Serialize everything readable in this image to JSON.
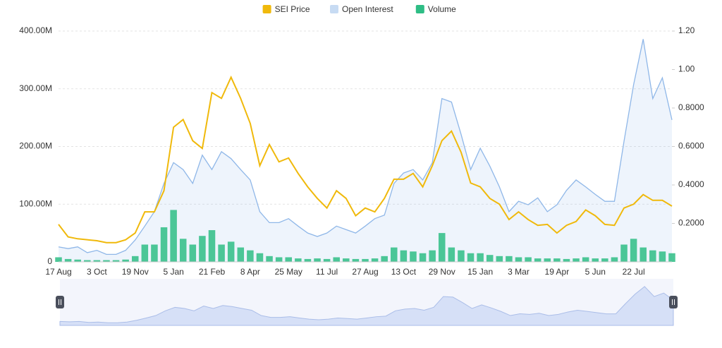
{
  "chart_data": {
    "type": "line",
    "categories": [
      "17 Aug",
      null,
      null,
      null,
      "3 Oct",
      null,
      null,
      null,
      "19 Nov",
      null,
      null,
      null,
      "5 Jan",
      null,
      null,
      null,
      "21 Feb",
      null,
      null,
      null,
      "8 Apr",
      null,
      null,
      null,
      "25 May",
      null,
      null,
      null,
      "11 Jul",
      null,
      null,
      null,
      "27 Aug",
      null,
      null,
      null,
      "13 Oct",
      null,
      null,
      null,
      "29 Nov",
      null,
      null,
      null,
      "15 Jan",
      null,
      null,
      null,
      "3 Mar",
      null,
      null,
      null,
      "19 Apr",
      null,
      null,
      null,
      "5 Jun",
      null,
      null,
      null,
      "22 Jul",
      null,
      null,
      null,
      null
    ],
    "series": [
      {
        "name": "SEI Price",
        "type": "line",
        "axis": "y2",
        "color": "#f0b90b",
        "values": [
          0.195,
          0.13,
          0.12,
          0.115,
          0.11,
          0.1,
          0.1,
          0.115,
          0.15,
          0.26,
          0.26,
          0.37,
          0.7,
          0.74,
          0.63,
          0.59,
          0.88,
          0.85,
          0.96,
          0.85,
          0.72,
          0.5,
          0.61,
          0.52,
          0.54,
          0.46,
          0.39,
          0.33,
          0.28,
          0.37,
          0.33,
          0.24,
          0.28,
          0.26,
          0.33,
          0.43,
          0.43,
          0.46,
          0.39,
          0.5,
          0.63,
          0.68,
          0.57,
          0.41,
          0.39,
          0.33,
          0.3,
          0.22,
          0.26,
          0.22,
          0.19,
          0.195,
          0.15,
          0.19,
          0.21,
          0.27,
          0.24,
          0.195,
          0.19,
          0.28,
          0.3,
          0.35,
          0.32,
          0.32,
          0.29
        ]
      },
      {
        "name": "Open Interest",
        "type": "area",
        "axis": "y",
        "color": "#8fb7e8",
        "values": [
          26000000,
          23000000,
          26000000,
          16000000,
          20000000,
          13000000,
          13000000,
          20000000,
          38000000,
          62000000,
          87000000,
          136000000,
          172000000,
          160000000,
          136000000,
          185000000,
          160000000,
          191000000,
          179000000,
          160000000,
          142000000,
          87000000,
          68000000,
          68000000,
          75000000,
          62000000,
          50000000,
          44000000,
          50000000,
          62000000,
          56000000,
          50000000,
          62000000,
          75000000,
          81000000,
          136000000,
          154000000,
          160000000,
          142000000,
          172000000,
          283000000,
          277000000,
          221000000,
          160000000,
          197000000,
          166000000,
          130000000,
          87000000,
          105000000,
          99000000,
          111000000,
          87000000,
          99000000,
          124000000,
          142000000,
          130000000,
          117000000,
          105000000,
          105000000,
          209000000,
          307000000,
          386000000,
          283000000,
          319000000,
          246000000
        ]
      },
      {
        "name": "Volume",
        "type": "bar",
        "axis": "y",
        "color": "#2ebd85",
        "values": [
          8000000,
          5000000,
          4000000,
          3000000,
          3000000,
          3000000,
          3000000,
          4000000,
          10000000,
          30000000,
          30000000,
          60000000,
          90000000,
          40000000,
          30000000,
          45000000,
          55000000,
          30000000,
          35000000,
          25000000,
          20000000,
          15000000,
          10000000,
          8000000,
          8000000,
          6000000,
          5000000,
          6000000,
          5000000,
          8000000,
          6000000,
          5000000,
          5000000,
          6000000,
          10000000,
          25000000,
          20000000,
          18000000,
          15000000,
          20000000,
          50000000,
          25000000,
          20000000,
          15000000,
          15000000,
          12000000,
          10000000,
          10000000,
          8000000,
          8000000,
          6000000,
          6000000,
          6000000,
          5000000,
          6000000,
          8000000,
          6000000,
          6000000,
          8000000,
          30000000,
          40000000,
          25000000,
          20000000,
          18000000,
          15000000
        ]
      }
    ],
    "ylim": [
      0,
      400000000
    ],
    "yticks": [
      0,
      {
        "value": 100000000,
        "label": "100.00M"
      },
      {
        "value": 200000000,
        "label": "200.00M"
      },
      {
        "value": 300000000,
        "label": "300.00M"
      },
      {
        "value": 400000000,
        "label": "400.00M"
      }
    ],
    "y2lim": [
      0,
      1.2
    ],
    "y2ticks": [
      {
        "value": 0.2,
        "label": "0.2000"
      },
      {
        "value": 0.4,
        "label": "0.4000"
      },
      {
        "value": 0.6,
        "label": "0.6000"
      },
      {
        "value": 0.8,
        "label": "0.8000"
      },
      {
        "value": 1,
        "label": "1.00"
      },
      {
        "value": 1.2,
        "label": "1.20"
      }
    ],
    "grid": true,
    "legend": "top"
  }
}
